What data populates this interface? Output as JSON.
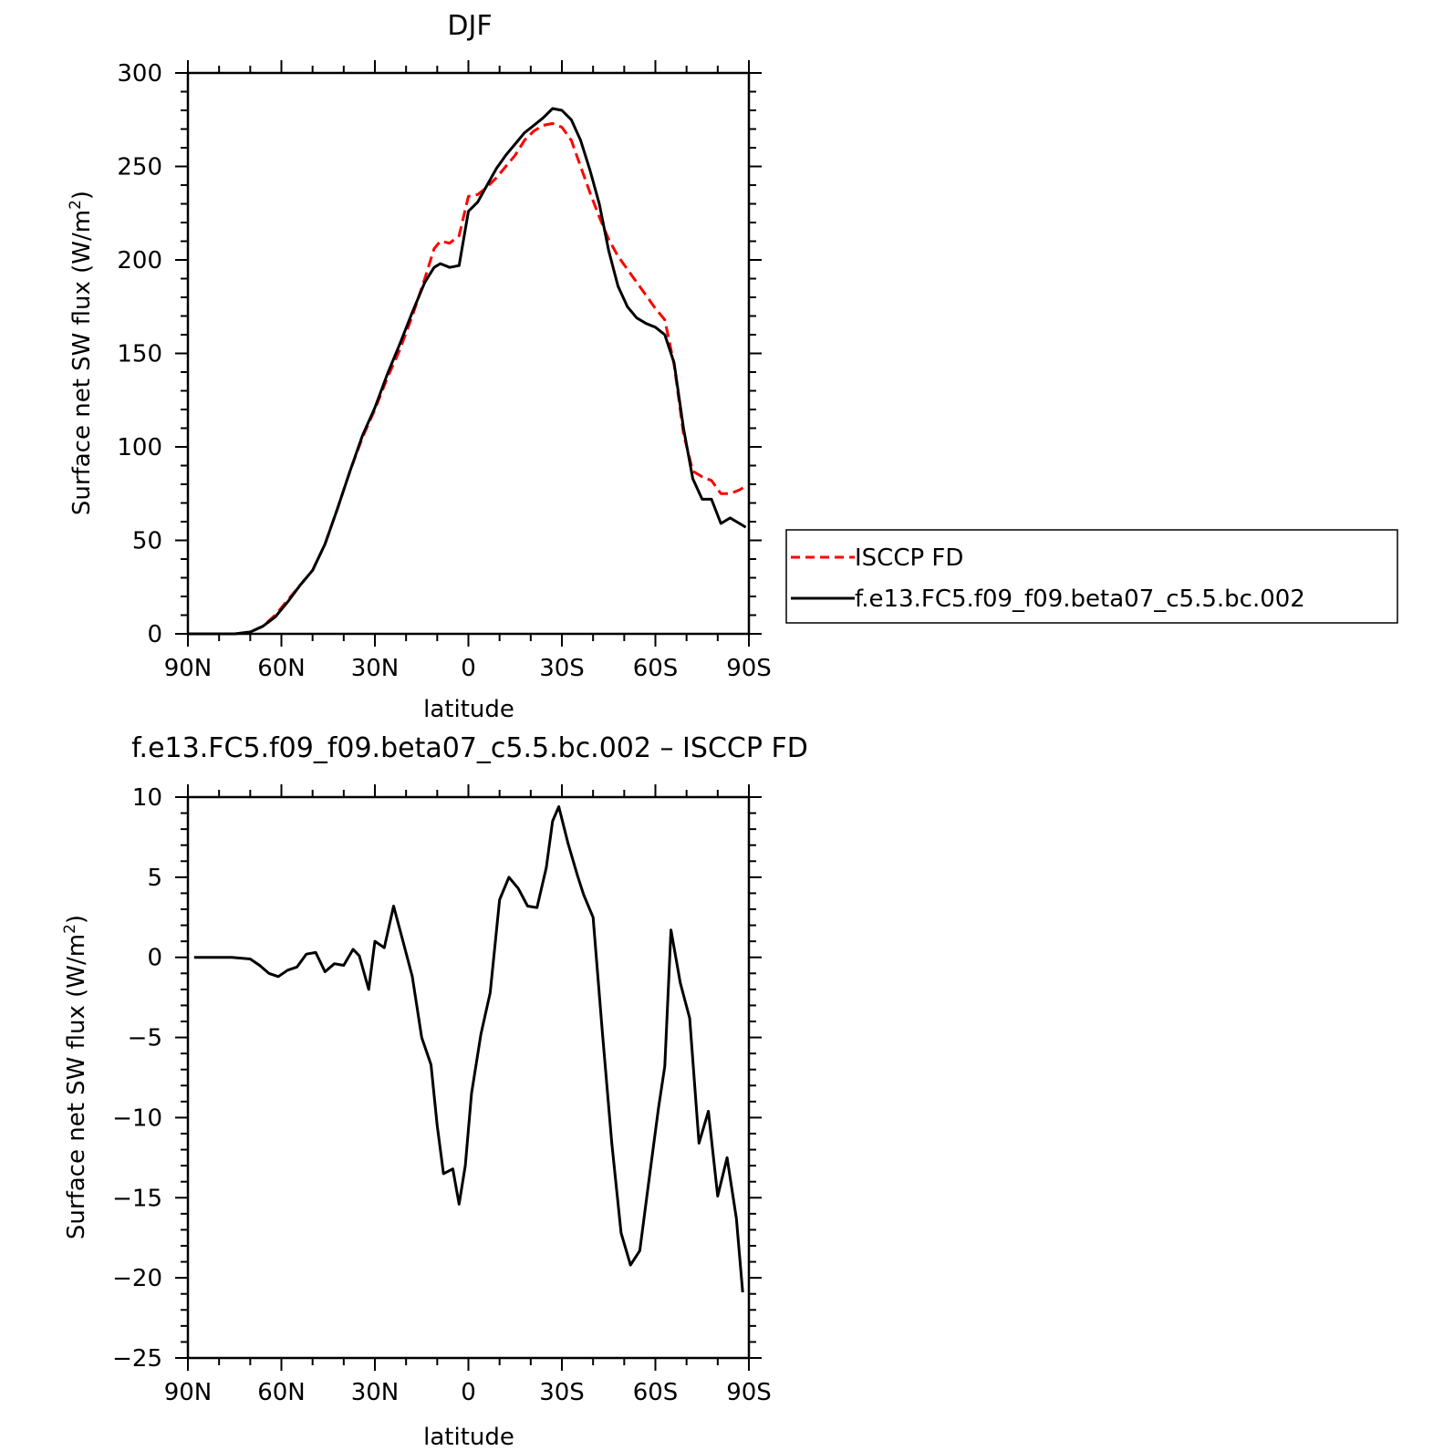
{
  "chart_data": [
    {
      "type": "line",
      "title": "DJF",
      "xlabel": "latitude",
      "ylabel": "Surface net SW flux (W/m",
      "ylabel_superscript": "2",
      "ylabel_suffix": ")",
      "xlim": [
        -90,
        90
      ],
      "ylim": [
        0,
        300
      ],
      "grid": false,
      "x_ticks": [
        {
          "value": -90,
          "label": "90N"
        },
        {
          "value": -60,
          "label": "60N"
        },
        {
          "value": -30,
          "label": "30N"
        },
        {
          "value": 0,
          "label": "0"
        },
        {
          "value": 30,
          "label": "30S"
        },
        {
          "value": 60,
          "label": "60S"
        },
        {
          "value": 90,
          "label": "90S"
        }
      ],
      "y_ticks": [
        {
          "value": 0,
          "label": "0"
        },
        {
          "value": 50,
          "label": "50"
        },
        {
          "value": 100,
          "label": "100"
        },
        {
          "value": 150,
          "label": "150"
        },
        {
          "value": 200,
          "label": "200"
        },
        {
          "value": 250,
          "label": "250"
        },
        {
          "value": 300,
          "label": "300"
        }
      ],
      "legend_position": "right",
      "series": [
        {
          "name": "ISCCP FD",
          "color": "#ff0000",
          "dash": "dashed",
          "x": [
            -90,
            -85,
            -80,
            -75,
            -70,
            -66,
            -62,
            -58,
            -54,
            -50,
            -46,
            -42,
            -38,
            -34,
            -30,
            -26,
            -22,
            -18,
            -14,
            -11,
            -9,
            -6,
            -3,
            0,
            3,
            6,
            9,
            12,
            15,
            18,
            21,
            24,
            27,
            30,
            33,
            36,
            39,
            42,
            45,
            48,
            51,
            54,
            57,
            60,
            63,
            66,
            69,
            72,
            75,
            78,
            81,
            84,
            87,
            89
          ],
          "y": [
            0,
            0,
            0,
            0,
            1,
            4,
            10,
            18,
            26,
            34,
            48,
            67,
            87,
            105,
            120,
            137,
            152,
            170,
            190,
            206,
            210,
            209,
            213,
            234,
            235,
            239,
            244,
            250,
            256,
            264,
            269,
            272,
            273,
            271,
            264,
            250,
            236,
            223,
            211,
            202,
            195,
            188,
            181,
            174,
            168,
            144,
            107,
            87,
            84,
            82,
            75,
            75,
            77,
            79
          ]
        },
        {
          "name": "f.e13.FC5.f09_f09.beta07_c5.5.bc.002",
          "color": "#000000",
          "dash": "solid",
          "x": [
            -90,
            -85,
            -80,
            -75,
            -70,
            -66,
            -62,
            -58,
            -54,
            -50,
            -46,
            -42,
            -38,
            -34,
            -30,
            -26,
            -22,
            -18,
            -14,
            -11,
            -9,
            -6,
            -3,
            0,
            3,
            6,
            9,
            12,
            15,
            18,
            21,
            24,
            27,
            30,
            33,
            36,
            39,
            42,
            45,
            48,
            51,
            54,
            57,
            60,
            63,
            66,
            69,
            72,
            75,
            78,
            81,
            84,
            87,
            89
          ],
          "y": [
            0,
            0,
            0,
            0,
            1,
            4,
            9,
            17,
            26,
            34,
            48,
            67,
            87,
            106,
            121,
            139,
            155,
            172,
            188,
            196,
            198,
            196,
            197,
            226,
            231,
            240,
            249,
            256,
            262,
            268,
            272,
            276,
            281,
            280,
            275,
            264,
            248,
            230,
            205,
            186,
            175,
            169,
            166,
            164,
            160,
            145,
            110,
            83,
            72,
            72,
            59,
            62,
            59,
            57
          ]
        }
      ]
    },
    {
      "type": "line",
      "title": "f.e13.FC5.f09_f09.beta07_c5.5.bc.002 – ISCCP FD",
      "xlabel": "latitude",
      "ylabel": "Surface net SW flux (W/m",
      "ylabel_superscript": "2",
      "ylabel_suffix": ")",
      "xlim": [
        -90,
        90
      ],
      "ylim": [
        -25,
        10
      ],
      "grid": false,
      "x_ticks": [
        {
          "value": -90,
          "label": "90N"
        },
        {
          "value": -60,
          "label": "60N"
        },
        {
          "value": -30,
          "label": "30N"
        },
        {
          "value": 0,
          "label": "0"
        },
        {
          "value": 30,
          "label": "30S"
        },
        {
          "value": 60,
          "label": "60S"
        },
        {
          "value": 90,
          "label": "90S"
        }
      ],
      "y_ticks": [
        {
          "value": -25,
          "label": "−25"
        },
        {
          "value": -20,
          "label": "−20"
        },
        {
          "value": -15,
          "label": "−15"
        },
        {
          "value": -10,
          "label": "−10"
        },
        {
          "value": -5,
          "label": "−5"
        },
        {
          "value": 0,
          "label": "0"
        },
        {
          "value": 5,
          "label": "5"
        },
        {
          "value": 10,
          "label": "10"
        }
      ],
      "series": [
        {
          "color": "#000000",
          "dash": "solid",
          "x": [
            -88,
            -82,
            -76,
            -70,
            -67,
            -64,
            -61,
            -58,
            -55,
            -52,
            -49,
            -46,
            -43,
            -40,
            -37,
            -35,
            -32,
            -30,
            -27,
            -24,
            -21,
            -18,
            -15,
            -12,
            -10,
            -8,
            -5,
            -3,
            -1,
            1,
            4,
            7,
            10,
            13,
            16,
            19,
            22,
            25,
            27,
            29,
            32,
            35,
            37,
            40,
            43,
            46,
            49,
            52,
            55,
            58,
            61,
            63,
            65,
            68,
            71,
            74,
            77,
            80,
            83,
            86,
            88
          ],
          "y": [
            0,
            0,
            0,
            -0.1,
            -0.5,
            -1,
            -1.2,
            -0.8,
            -0.6,
            0.2,
            0.3,
            -0.9,
            -0.4,
            -0.5,
            0.5,
            0.1,
            -2,
            1,
            0.6,
            3.2,
            1,
            -1.2,
            -5,
            -6.7,
            -10.5,
            -13.5,
            -13.2,
            -15.4,
            -13,
            -8.5,
            -4.8,
            -2.2,
            3.6,
            5,
            4.3,
            3.2,
            3.1,
            5.6,
            8.5,
            9.4,
            7.1,
            5.1,
            3.9,
            2.5,
            -4.7,
            -11.6,
            -17.2,
            -19.2,
            -18.3,
            -13.8,
            -9.4,
            -6.8,
            1.7,
            -1.6,
            -3.8,
            -11.6,
            -9.6,
            -14.9,
            -12.5,
            -16.3,
            -20.9
          ]
        }
      ]
    }
  ]
}
